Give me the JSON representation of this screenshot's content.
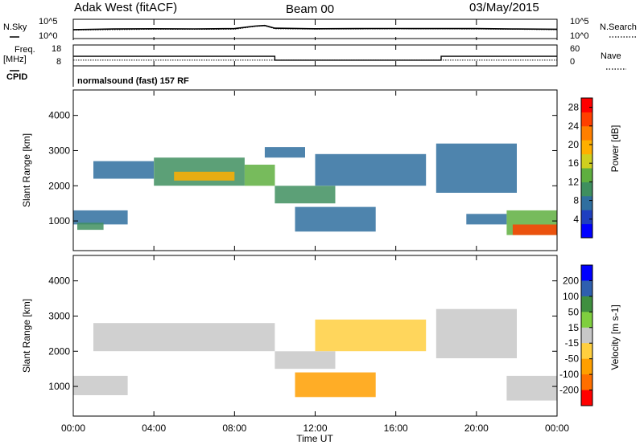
{
  "header": {
    "radar": "Adak West (fitACF)",
    "beam": "Beam 00",
    "date": "03/May/2015"
  },
  "top_panels": {
    "nsky_label": "N.Sky",
    "nsearch_label": "N.Search",
    "freq_label": "Freq.",
    "freq_unit": "[MHz]",
    "nave_label": "Nave",
    "cpid_label": "CPID",
    "cpid_text": "normalsound (fast) 157 RF",
    "noise_ticks": [
      "10^5",
      "10^0"
    ],
    "freq_ticks": [
      "18",
      "8"
    ],
    "nave_ticks": [
      "60",
      "0"
    ]
  },
  "colors": {
    "power_scale": [
      "#0000ff",
      "#1f3fbf",
      "#2f6f9f",
      "#3f8f5f",
      "#5faf3f",
      "#cfcf1f",
      "#ffaf00",
      "#ff7f00",
      "#ff3f00",
      "#ff0000"
    ],
    "velocity_scale": [
      "#0000ff",
      "#2f5faf",
      "#3f8f3f",
      "#7fcf3f",
      "#c8c8c8",
      "#ffcf3f",
      "#ff9f00",
      "#ff6f00",
      "#ff0000"
    ]
  },
  "chart_data": [
    {
      "type": "line",
      "title": "N.Sky / N.Search",
      "y_scale": "log",
      "ylim": [
        1,
        100000
      ],
      "x": [
        "00:00",
        "02:00",
        "04:00",
        "06:00",
        "08:00",
        "09:00",
        "09:30",
        "10:00",
        "12:00",
        "14:00",
        "16:00",
        "18:00",
        "20:00",
        "22:00",
        "24:00"
      ],
      "series": [
        {
          "name": "N.Sky",
          "values": [
            200,
            300,
            350,
            320,
            380,
            2000,
            3000,
            500,
            350,
            380,
            420,
            400,
            380,
            300,
            250
          ]
        },
        {
          "name": "N.Search",
          "values": [
            150,
            200,
            250,
            240,
            260,
            1500,
            2500,
            350,
            280,
            300,
            330,
            320,
            300,
            240,
            200
          ]
        }
      ]
    },
    {
      "type": "line",
      "title": "Freq. / Nave",
      "x": [
        "00:00",
        "10:00",
        "10:00",
        "18:15",
        "18:15",
        "24:00"
      ],
      "series": [
        {
          "name": "Freq.",
          "values": [
            12.5,
            12.5,
            10.3,
            10.3,
            12.5,
            12.5
          ]
        },
        {
          "name": "Nave",
          "values": [
            14,
            14,
            14,
            14,
            14,
            14
          ]
        }
      ]
    },
    {
      "type": "heatmap",
      "title": "Power",
      "xlabel": "",
      "ylabel": "Slant Range [km]",
      "x_range": [
        "00:00",
        "24:00"
      ],
      "ylim": [
        180,
        4700
      ],
      "y_ticks": [
        1000,
        2000,
        3000,
        4000
      ],
      "colorbar": {
        "label": "Power [dB]",
        "ticks": [
          4,
          8,
          12,
          16,
          20,
          24,
          28
        ],
        "range": [
          0,
          30
        ]
      },
      "regions": [
        {
          "t_start": 0.0,
          "t_end": 2.7,
          "range_km": [
            900,
            1300
          ],
          "value": 8
        },
        {
          "t_start": 0.2,
          "t_end": 1.5,
          "range_km": [
            750,
            950
          ],
          "value": 10
        },
        {
          "t_start": 1.0,
          "t_end": 4.0,
          "range_km": [
            2200,
            2700
          ],
          "value": 6
        },
        {
          "t_start": 4.0,
          "t_end": 8.5,
          "range_km": [
            2000,
            2800
          ],
          "value": 10
        },
        {
          "t_start": 5.0,
          "t_end": 8.0,
          "range_km": [
            2150,
            2400
          ],
          "value": 18
        },
        {
          "t_start": 8.5,
          "t_end": 10.0,
          "range_km": [
            2000,
            2600
          ],
          "value": 12
        },
        {
          "t_start": 10.0,
          "t_end": 13.0,
          "range_km": [
            1500,
            2000
          ],
          "value": 9
        },
        {
          "t_start": 12.0,
          "t_end": 17.5,
          "range_km": [
            2000,
            2900
          ],
          "value": 6
        },
        {
          "t_start": 11.0,
          "t_end": 15.0,
          "range_km": [
            700,
            1400
          ],
          "value": 8
        },
        {
          "t_start": 9.5,
          "t_end": 11.5,
          "range_km": [
            2800,
            3100
          ],
          "value": 6
        },
        {
          "t_start": 18.0,
          "t_end": 22.0,
          "range_km": [
            1800,
            3200
          ],
          "value": 8
        },
        {
          "t_start": 19.5,
          "t_end": 21.5,
          "range_km": [
            900,
            1200
          ],
          "value": 6
        },
        {
          "t_start": 21.5,
          "t_end": 24.0,
          "range_km": [
            600,
            1300
          ],
          "value": 14
        },
        {
          "t_start": 21.8,
          "t_end": 24.0,
          "range_km": [
            600,
            900
          ],
          "value": 24
        }
      ]
    },
    {
      "type": "heatmap",
      "title": "Velocity",
      "xlabel": "Time UT",
      "ylabel": "Slant Range [km]",
      "x_ticks": [
        "00:00",
        "04:00",
        "08:00",
        "12:00",
        "16:00",
        "20:00",
        "00:00"
      ],
      "ylim": [
        180,
        4700
      ],
      "y_ticks": [
        1000,
        2000,
        3000,
        4000
      ],
      "colorbar": {
        "label": "Velocity [m s-1]",
        "ticks": [
          "200",
          "100",
          "50",
          "15",
          "-15",
          "-50",
          "-100",
          "-200"
        ]
      },
      "regions": [
        {
          "t_start": 0.0,
          "t_end": 2.7,
          "range_km": [
            750,
            1300
          ],
          "value": 0
        },
        {
          "t_start": 1.0,
          "t_end": 10.0,
          "range_km": [
            2000,
            2800
          ],
          "value": 0
        },
        {
          "t_start": 10.0,
          "t_end": 13.0,
          "range_km": [
            1500,
            2000
          ],
          "value": 0
        },
        {
          "t_start": 12.0,
          "t_end": 17.5,
          "range_km": [
            2000,
            2900
          ],
          "value": -20
        },
        {
          "t_start": 11.0,
          "t_end": 15.0,
          "range_km": [
            700,
            1400
          ],
          "value": -60
        },
        {
          "t_start": 18.0,
          "t_end": 22.0,
          "range_km": [
            1800,
            3200
          ],
          "value": 0
        },
        {
          "t_start": 21.5,
          "t_end": 24.0,
          "range_km": [
            600,
            1300
          ],
          "value": 0
        }
      ]
    }
  ]
}
